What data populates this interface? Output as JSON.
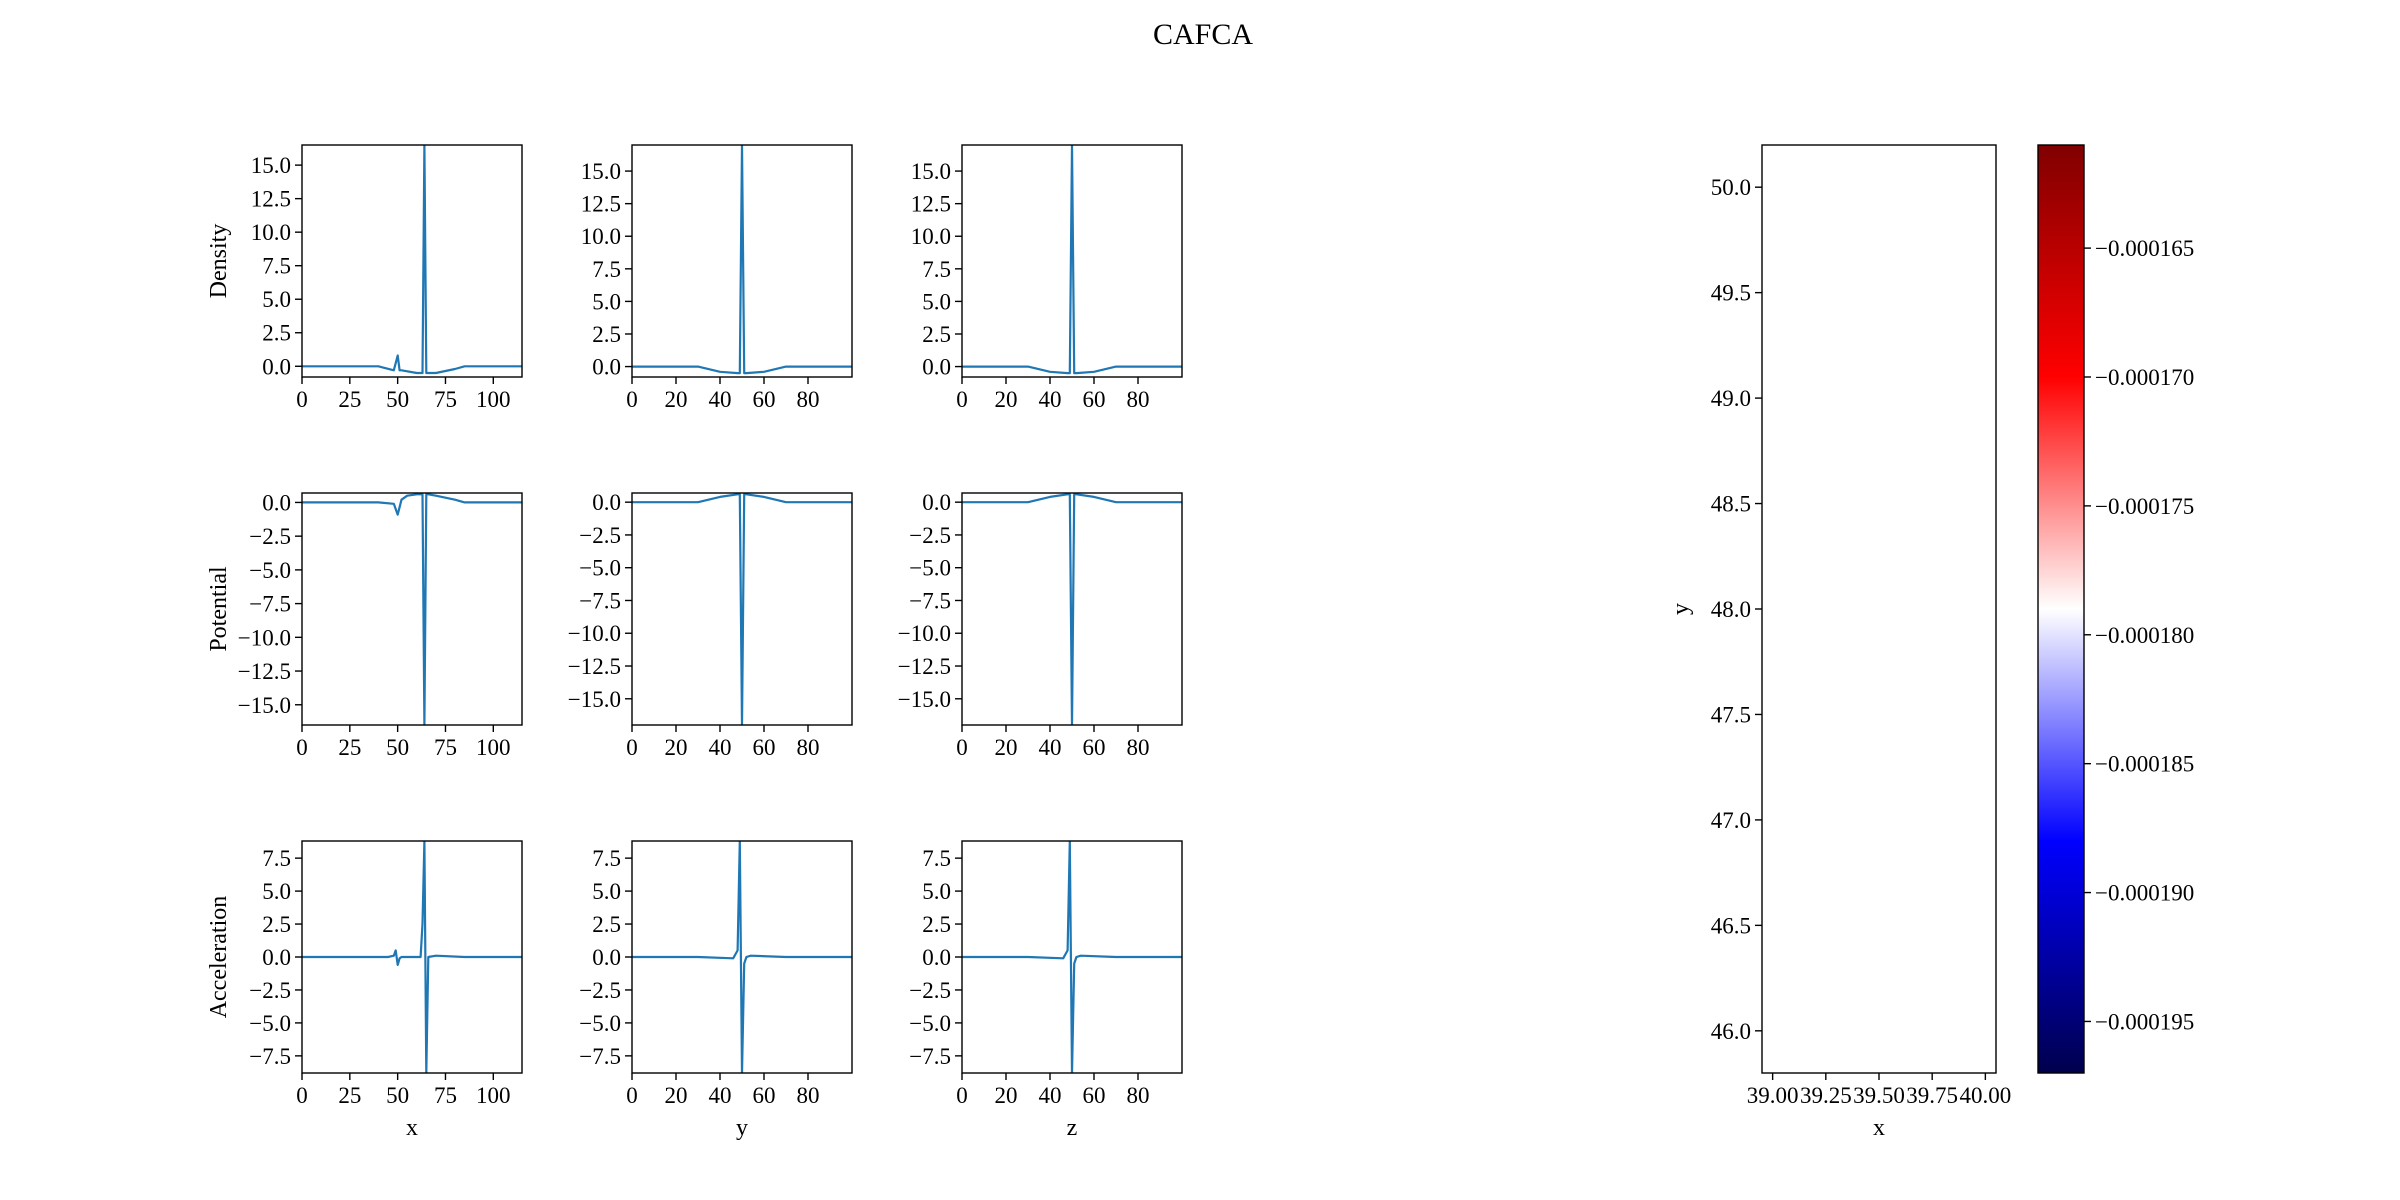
{
  "title": "CAFCA",
  "chart_data": [
    {
      "type": "line",
      "id": "density-x",
      "ylabel": "Density",
      "xlabel": "",
      "xlim": [
        0,
        115
      ],
      "ylim": [
        -0.8,
        16.5
      ],
      "xticks": [
        0,
        25,
        50,
        75,
        100
      ],
      "xticklabels": [
        "0",
        "25",
        "50",
        "75",
        "100"
      ],
      "yticks": [
        0,
        2.5,
        5,
        7.5,
        10,
        12.5,
        15
      ],
      "yticklabels": [
        "0.0",
        "2.5",
        "5.0",
        "7.5",
        "10.0",
        "12.5",
        "15.0"
      ],
      "x": [
        0,
        40,
        48,
        50,
        51,
        52,
        60,
        63,
        64,
        65,
        66,
        70,
        80,
        85,
        115
      ],
      "y": [
        0,
        0,
        -0.3,
        0.8,
        -0.3,
        -0.3,
        -0.5,
        -0.5,
        16.5,
        -0.5,
        -0.5,
        -0.5,
        -0.2,
        0,
        0
      ]
    },
    {
      "type": "line",
      "id": "density-y",
      "ylabel": "",
      "xlabel": "",
      "xlim": [
        0,
        100
      ],
      "ylim": [
        -0.8,
        17
      ],
      "xticks": [
        0,
        20,
        40,
        60,
        80
      ],
      "xticklabels": [
        "0",
        "20",
        "40",
        "60",
        "80"
      ],
      "yticks": [
        0,
        2.5,
        5,
        7.5,
        10,
        12.5,
        15
      ],
      "yticklabels": [
        "0.0",
        "2.5",
        "5.0",
        "7.5",
        "10.0",
        "12.5",
        "15.0"
      ],
      "x": [
        0,
        30,
        40,
        48,
        49,
        50,
        51,
        52,
        60,
        70,
        100
      ],
      "y": [
        0,
        0,
        -0.4,
        -0.5,
        -0.5,
        17,
        -0.5,
        -0.5,
        -0.4,
        0,
        0
      ]
    },
    {
      "type": "line",
      "id": "density-z",
      "ylabel": "",
      "xlabel": "",
      "xlim": [
        0,
        100
      ],
      "ylim": [
        -0.8,
        17
      ],
      "xticks": [
        0,
        20,
        40,
        60,
        80
      ],
      "xticklabels": [
        "0",
        "20",
        "40",
        "60",
        "80"
      ],
      "yticks": [
        0,
        2.5,
        5,
        7.5,
        10,
        12.5,
        15
      ],
      "yticklabels": [
        "0.0",
        "2.5",
        "5.0",
        "7.5",
        "10.0",
        "12.5",
        "15.0"
      ],
      "x": [
        0,
        30,
        40,
        48,
        49,
        50,
        51,
        52,
        60,
        70,
        100
      ],
      "y": [
        0,
        0,
        -0.4,
        -0.5,
        -0.5,
        17,
        -0.5,
        -0.5,
        -0.4,
        0,
        0
      ]
    },
    {
      "type": "line",
      "id": "potential-x",
      "ylabel": "Potential",
      "xlabel": "",
      "xlim": [
        0,
        115
      ],
      "ylim": [
        -16.5,
        0.7
      ],
      "xticks": [
        0,
        25,
        50,
        75,
        100
      ],
      "xticklabels": [
        "0",
        "25",
        "50",
        "75",
        "100"
      ],
      "yticks": [
        0,
        -2.5,
        -5,
        -7.5,
        -10,
        -12.5,
        -15
      ],
      "yticklabels": [
        "0.0",
        "−2.5",
        "−5.0",
        "−7.5",
        "−10.0",
        "−12.5",
        "−15.0"
      ],
      "x": [
        0,
        40,
        48,
        50,
        52,
        55,
        60,
        63,
        64,
        65,
        66,
        70,
        80,
        85,
        115
      ],
      "y": [
        0,
        0,
        -0.1,
        -0.9,
        0.2,
        0.5,
        0.6,
        0.6,
        -16.5,
        0.6,
        0.6,
        0.5,
        0.2,
        0,
        0
      ]
    },
    {
      "type": "line",
      "id": "potential-y",
      "ylabel": "",
      "xlabel": "",
      "xlim": [
        0,
        100
      ],
      "ylim": [
        -17,
        0.7
      ],
      "xticks": [
        0,
        20,
        40,
        60,
        80
      ],
      "xticklabels": [
        "0",
        "20",
        "40",
        "60",
        "80"
      ],
      "yticks": [
        0,
        -2.5,
        -5,
        -7.5,
        -10,
        -12.5,
        -15
      ],
      "yticklabels": [
        "0.0",
        "−2.5",
        "−5.0",
        "−7.5",
        "−10.0",
        "−12.5",
        "−15.0"
      ],
      "x": [
        0,
        30,
        40,
        48,
        49,
        50,
        51,
        52,
        60,
        70,
        100
      ],
      "y": [
        0,
        0,
        0.4,
        0.6,
        0.6,
        -17,
        0.6,
        0.6,
        0.4,
        0,
        0
      ]
    },
    {
      "type": "line",
      "id": "potential-z",
      "ylabel": "",
      "xlabel": "",
      "xlim": [
        0,
        100
      ],
      "ylim": [
        -17,
        0.7
      ],
      "xticks": [
        0,
        20,
        40,
        60,
        80
      ],
      "xticklabels": [
        "0",
        "20",
        "40",
        "60",
        "80"
      ],
      "yticks": [
        0,
        -2.5,
        -5,
        -7.5,
        -10,
        -12.5,
        -15
      ],
      "yticklabels": [
        "0.0",
        "−2.5",
        "−5.0",
        "−7.5",
        "−10.0",
        "−12.5",
        "−15.0"
      ],
      "x": [
        0,
        30,
        40,
        48,
        49,
        50,
        51,
        52,
        60,
        70,
        100
      ],
      "y": [
        0,
        0,
        0.4,
        0.6,
        0.6,
        -17,
        0.6,
        0.6,
        0.4,
        0,
        0
      ]
    },
    {
      "type": "line",
      "id": "acceleration-x",
      "ylabel": "Acceleration",
      "xlabel": "x",
      "xlim": [
        0,
        115
      ],
      "ylim": [
        -8.8,
        8.8
      ],
      "xticks": [
        0,
        25,
        50,
        75,
        100
      ],
      "xticklabels": [
        "0",
        "25",
        "50",
        "75",
        "100"
      ],
      "yticks": [
        7.5,
        5,
        2.5,
        0,
        -2.5,
        -5,
        -7.5
      ],
      "yticklabels": [
        "7.5",
        "5.0",
        "2.5",
        "0.0",
        "−2.5",
        "−5.0",
        "−7.5"
      ],
      "x": [
        0,
        45,
        48,
        49,
        50,
        51,
        52,
        55,
        62,
        63,
        64,
        65,
        66,
        70,
        85,
        115
      ],
      "y": [
        0,
        0,
        0.1,
        0.5,
        -0.6,
        -0.1,
        0,
        0,
        0,
        2.5,
        8.8,
        -8.8,
        0,
        0.1,
        0,
        0
      ]
    },
    {
      "type": "line",
      "id": "acceleration-y",
      "ylabel": "",
      "xlabel": "y",
      "xlim": [
        0,
        100
      ],
      "ylim": [
        -8.8,
        8.8
      ],
      "xticks": [
        0,
        20,
        40,
        60,
        80
      ],
      "xticklabels": [
        "0",
        "20",
        "40",
        "60",
        "80"
      ],
      "yticks": [
        7.5,
        5,
        2.5,
        0,
        -2.5,
        -5,
        -7.5
      ],
      "yticklabels": [
        "7.5",
        "5.0",
        "2.5",
        "0.0",
        "−2.5",
        "−5.0",
        "−7.5"
      ],
      "x": [
        0,
        30,
        46,
        48,
        49,
        50,
        51,
        52,
        54,
        70,
        100
      ],
      "y": [
        0,
        0,
        -0.1,
        0.5,
        8.8,
        -8.8,
        -0.5,
        0,
        0.1,
        0,
        0
      ]
    },
    {
      "type": "line",
      "id": "acceleration-z",
      "ylabel": "",
      "xlabel": "z",
      "xlim": [
        0,
        100
      ],
      "ylim": [
        -8.8,
        8.8
      ],
      "xticks": [
        0,
        20,
        40,
        60,
        80
      ],
      "xticklabels": [
        "0",
        "20",
        "40",
        "60",
        "80"
      ],
      "yticks": [
        7.5,
        5,
        2.5,
        0,
        -2.5,
        -5,
        -7.5
      ],
      "yticklabels": [
        "7.5",
        "5.0",
        "2.5",
        "0.0",
        "−2.5",
        "−5.0",
        "−7.5"
      ],
      "x": [
        0,
        30,
        46,
        48,
        49,
        50,
        51,
        52,
        54,
        70,
        100
      ],
      "y": [
        0,
        0,
        -0.1,
        0.5,
        8.8,
        -8.8,
        -0.5,
        0,
        0.1,
        0,
        0
      ]
    },
    {
      "type": "heatmap",
      "id": "slice-xy",
      "xlabel": "x",
      "ylabel": "y",
      "xlim": [
        38.95,
        40.05
      ],
      "ylim": [
        45.8,
        50.2
      ],
      "xticks": [
        39.0,
        39.25,
        39.5,
        39.75,
        40.0
      ],
      "xticklabels": [
        "39.00",
        "39.25",
        "39.50",
        "39.75",
        "40.00"
      ],
      "yticks": [
        46.0,
        46.5,
        47.0,
        47.5,
        48.0,
        48.5,
        49.0,
        49.5,
        50.0
      ],
      "yticklabels": [
        "46.0",
        "46.5",
        "47.0",
        "47.5",
        "48.0",
        "48.5",
        "49.0",
        "49.5",
        "50.0"
      ],
      "values": [],
      "colorbar": {
        "colormap": "seismic",
        "colors": [
          "#00004d",
          "#0000ff",
          "#ffffff",
          "#ff0000",
          "#800000"
        ],
        "range": [
          -0.000197,
          -0.000161
        ],
        "ticks": [
          -0.000195,
          -0.00019,
          -0.000185,
          -0.00018,
          -0.000175,
          -0.00017,
          -0.000165
        ],
        "ticklabels": [
          "−0.000195",
          "−0.000190",
          "−0.000185",
          "−0.000180",
          "−0.000175",
          "−0.000170",
          "−0.000165"
        ]
      }
    }
  ]
}
